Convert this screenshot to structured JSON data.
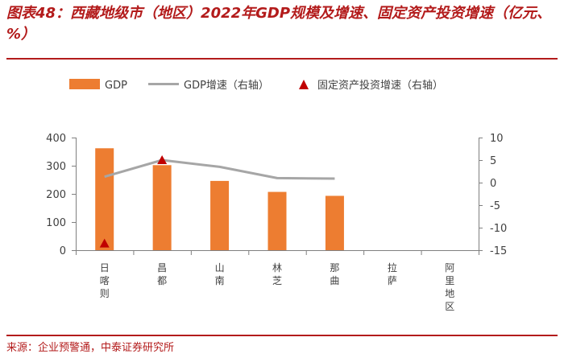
{
  "title": "图表48：西藏地级市（地区）2022年GDP规模及增速、固定资产投资增速（亿元、%）",
  "source": "来源：企业预警通，中泰证券研究所",
  "colors": {
    "bar": "#ED7D31",
    "line": "#A6A6A6",
    "marker": "#C00000",
    "accent": "#B31B1B"
  },
  "chart_data": {
    "type": "bar",
    "categories": [
      "日喀则",
      "昌都",
      "山南",
      "林芝",
      "那曲",
      "拉萨",
      "阿里地区"
    ],
    "legend": [
      "GDP",
      "GDP增速（右轴）",
      "固定资产投资增速（右轴）"
    ],
    "series": [
      {
        "name": "GDP",
        "axis": "left",
        "kind": "bar",
        "values": [
          362,
          302,
          246,
          207,
          193,
          null,
          null
        ]
      },
      {
        "name": "GDP增速（右轴）",
        "axis": "right",
        "kind": "line",
        "values": [
          1.3,
          5.0,
          3.5,
          1.0,
          0.9,
          null,
          null
        ]
      },
      {
        "name": "固定资产投资增速（右轴）",
        "axis": "right",
        "kind": "marker",
        "values": [
          -13.5,
          5.0,
          null,
          null,
          null,
          null,
          null
        ]
      }
    ],
    "ylim_left": [
      0,
      400
    ],
    "ylim_right": [
      -15,
      10
    ],
    "yticks_left": [
      "0",
      "100",
      "200",
      "300",
      "400"
    ],
    "yticks_right": [
      "10",
      "5",
      "0",
      "-5",
      "-10",
      "-15"
    ]
  }
}
